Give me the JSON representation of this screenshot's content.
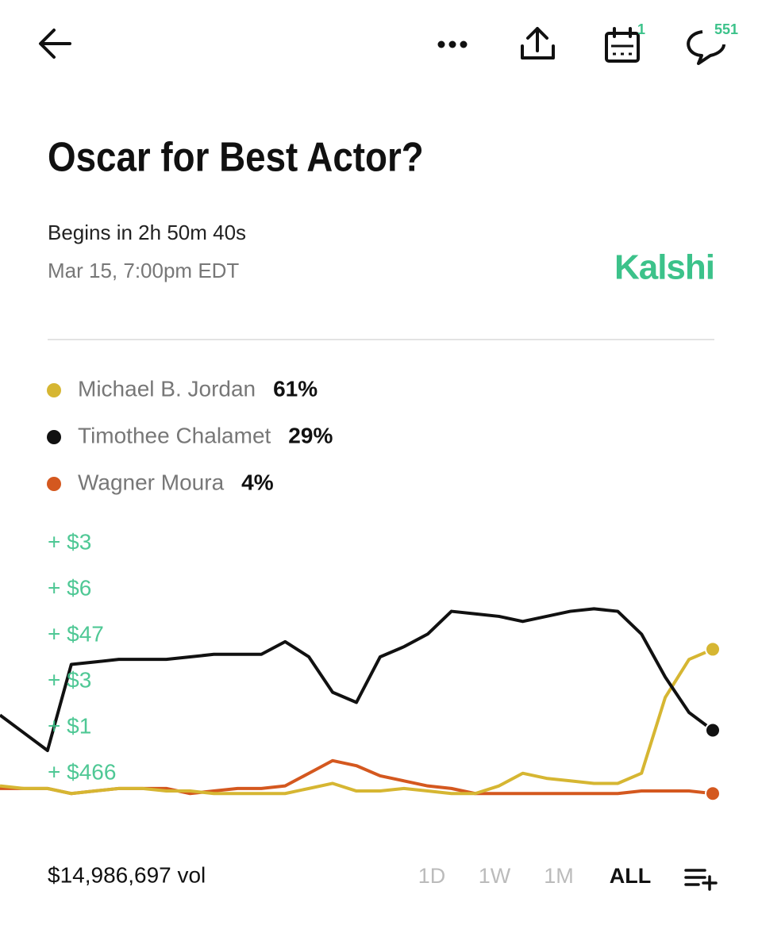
{
  "header": {
    "calendar_badge": "1",
    "comments_badge": "551"
  },
  "title": "Oscar for Best Actor?",
  "countdown": "Begins in 2h 50m 40s",
  "date": "Mar 15, 7:00pm EDT",
  "brand": "Kalshi",
  "trades": [
    "+ $3",
    "+ $6",
    "+ $47",
    "+ $3",
    "+ $1",
    "+ $466"
  ],
  "chart_data": {
    "type": "line",
    "ylim": [
      0,
      100
    ],
    "chances": [
      "61%",
      "29%",
      "4%"
    ],
    "series": [
      {
        "name": "Michael B. Jordan",
        "color": "#d6b632",
        "values": [
          7,
          6,
          6,
          4,
          5,
          6,
          6,
          5,
          5,
          4,
          4,
          4,
          4,
          6,
          8,
          5,
          5,
          6,
          5,
          4,
          4,
          7,
          12,
          10,
          9,
          8,
          8,
          12,
          42,
          57,
          61
        ]
      },
      {
        "name": "Timothee Chalamet",
        "color": "#111111",
        "values": [
          35,
          28,
          21,
          55,
          56,
          57,
          57,
          57,
          58,
          59,
          59,
          59,
          64,
          58,
          44,
          40,
          58,
          62,
          67,
          76,
          75,
          74,
          72,
          74,
          76,
          77,
          76,
          67,
          50,
          36,
          29
        ]
      },
      {
        "name": "Wagner Moura",
        "color": "#d4581f",
        "values": [
          6,
          6,
          6,
          4,
          5,
          6,
          6,
          6,
          4,
          5,
          6,
          6,
          7,
          12,
          17,
          15,
          11,
          9,
          7,
          6,
          4,
          4,
          4,
          4,
          4,
          4,
          4,
          5,
          5,
          5,
          4
        ]
      }
    ]
  },
  "volume": "$14,986,697 vol",
  "ranges": [
    "1D",
    "1W",
    "1M",
    "ALL"
  ],
  "selected_range": 3
}
